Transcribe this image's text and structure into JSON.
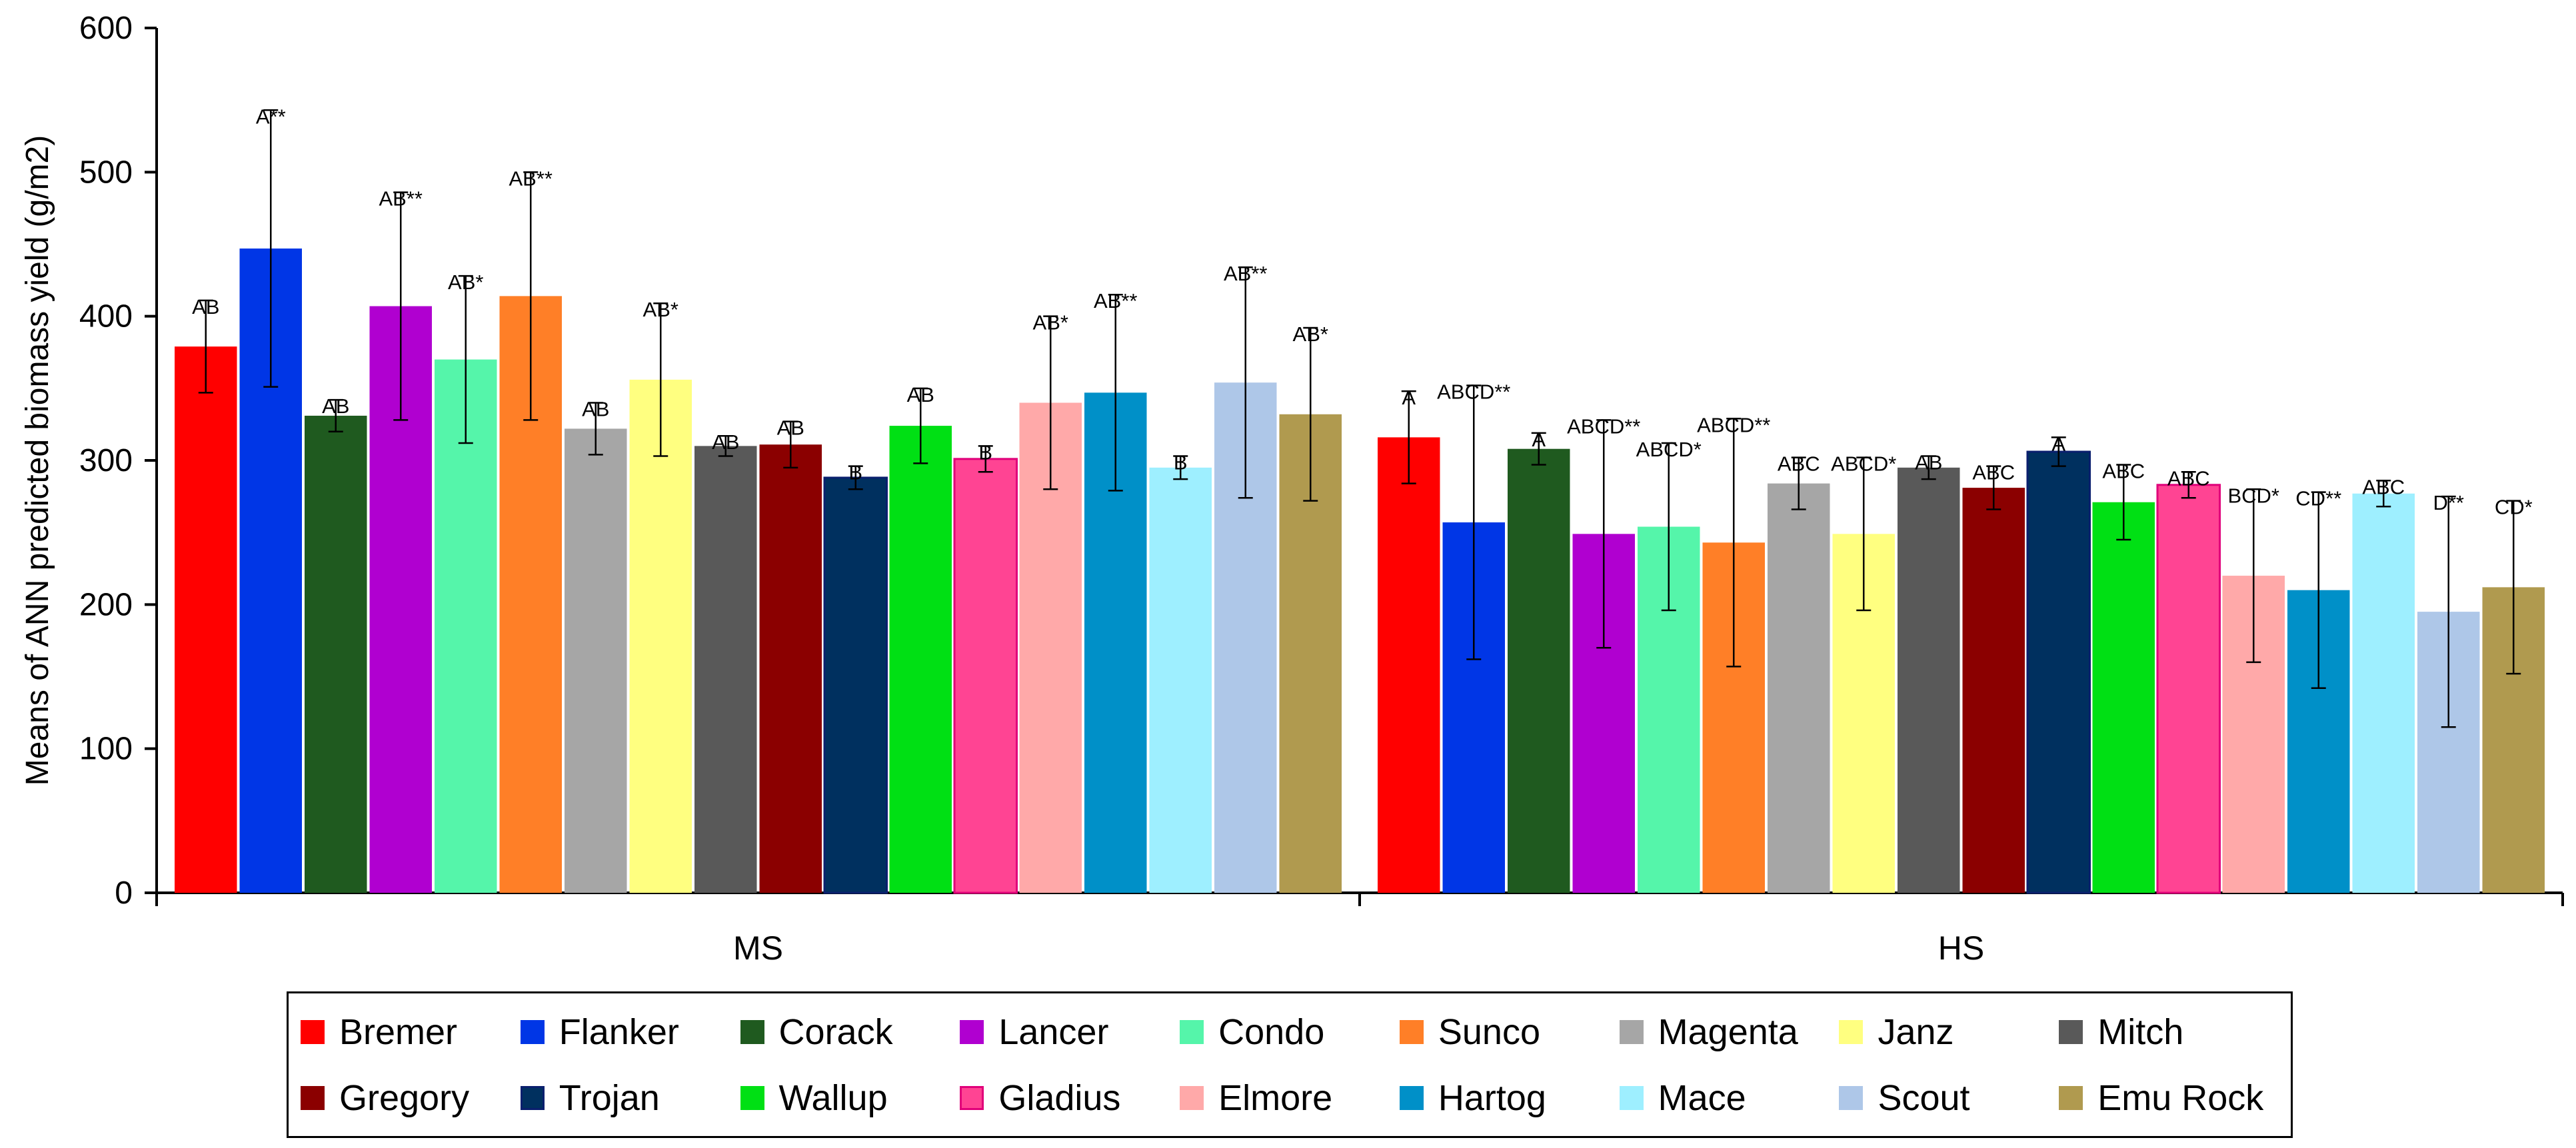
{
  "chart_data": {
    "type": "bar",
    "ylabel": "Means of ANN predicted biomass yield (g/m2)",
    "xlabel": "",
    "ylim": [
      0,
      600
    ],
    "yticks": [
      0,
      100,
      200,
      300,
      400,
      500,
      600
    ],
    "groups": [
      "MS",
      "HS"
    ],
    "legend_position": "bottom",
    "series": [
      {
        "name": "Bremer",
        "color": "#ff0000",
        "values": [
          379,
          316
        ],
        "errors": [
          32,
          32
        ],
        "labels": [
          "AB",
          "A"
        ]
      },
      {
        "name": "Flanker",
        "color": "#0036e6",
        "values": [
          447,
          257
        ],
        "errors": [
          96,
          95
        ],
        "labels": [
          "A**",
          "ABCD**"
        ]
      },
      {
        "name": "Corack",
        "color": "#1f5a1f",
        "values": [
          331,
          308
        ],
        "errors": [
          11,
          11
        ],
        "labels": [
          "AB",
          "A"
        ]
      },
      {
        "name": "Lancer",
        "color": "#b000d0",
        "values": [
          407,
          249
        ],
        "errors": [
          79,
          79
        ],
        "labels": [
          "AB**",
          "ABCD**"
        ]
      },
      {
        "name": "Condo",
        "color": "#55f5aa",
        "values": [
          370,
          254
        ],
        "errors": [
          58,
          58
        ],
        "labels": [
          "AB*",
          "ABCD*"
        ]
      },
      {
        "name": "Sunco",
        "color": "#ff7f27",
        "values": [
          414,
          243
        ],
        "errors": [
          86,
          86
        ],
        "labels": [
          "AB**",
          "ABCD**"
        ]
      },
      {
        "name": "Magenta",
        "color": "#a6a6a6",
        "values": [
          322,
          284
        ],
        "errors": [
          18,
          18
        ],
        "labels": [
          "AB",
          "ABC"
        ]
      },
      {
        "name": "Janz",
        "color": "#ffff80",
        "values": [
          356,
          249
        ],
        "errors": [
          53,
          53
        ],
        "labels": [
          "AB*",
          "ABCD*"
        ]
      },
      {
        "name": "Mitch",
        "color": "#595959",
        "values": [
          310,
          295
        ],
        "errors": [
          7,
          8
        ],
        "labels": [
          "AB",
          "AB"
        ]
      },
      {
        "name": "Gregory",
        "color": "#8b0000",
        "values": [
          311,
          281
        ],
        "errors": [
          16,
          15
        ],
        "labels": [
          "AB",
          "ABC"
        ]
      },
      {
        "name": "Trojan",
        "color": "#00305f",
        "values": [
          288,
          306
        ],
        "errors": [
          8,
          10
        ],
        "labels": [
          "B",
          "A"
        ]
      },
      {
        "name": "Wallup",
        "color": "#00e014",
        "values": [
          324,
          271
        ],
        "errors": [
          26,
          26
        ],
        "labels": [
          "AB",
          "ABC"
        ]
      },
      {
        "name": "Gladius",
        "color": "#ff4493",
        "values": [
          301,
          283
        ],
        "errors": [
          9,
          9
        ],
        "labels": [
          "B",
          "ABC"
        ]
      },
      {
        "name": "Elmore",
        "color": "#ffa9a9",
        "values": [
          340,
          220
        ],
        "errors": [
          60,
          60
        ],
        "labels": [
          "AB*",
          "BCD*"
        ]
      },
      {
        "name": "Hartog",
        "color": "#0090c8",
        "values": [
          347,
          210
        ],
        "errors": [
          68,
          68
        ],
        "labels": [
          "AB**",
          "CD**"
        ]
      },
      {
        "name": "Mace",
        "color": "#9eefff",
        "values": [
          295,
          277
        ],
        "errors": [
          8,
          9
        ],
        "labels": [
          "B",
          "ABC"
        ]
      },
      {
        "name": "Scout",
        "color": "#aec7e8",
        "values": [
          354,
          195
        ],
        "errors": [
          80,
          80
        ],
        "labels": [
          "AB**",
          "D**"
        ]
      },
      {
        "name": "Emu Rock",
        "color": "#b09a4f",
        "values": [
          332,
          212
        ],
        "errors": [
          60,
          60
        ],
        "labels": [
          "AB*",
          "CD*"
        ]
      }
    ]
  }
}
